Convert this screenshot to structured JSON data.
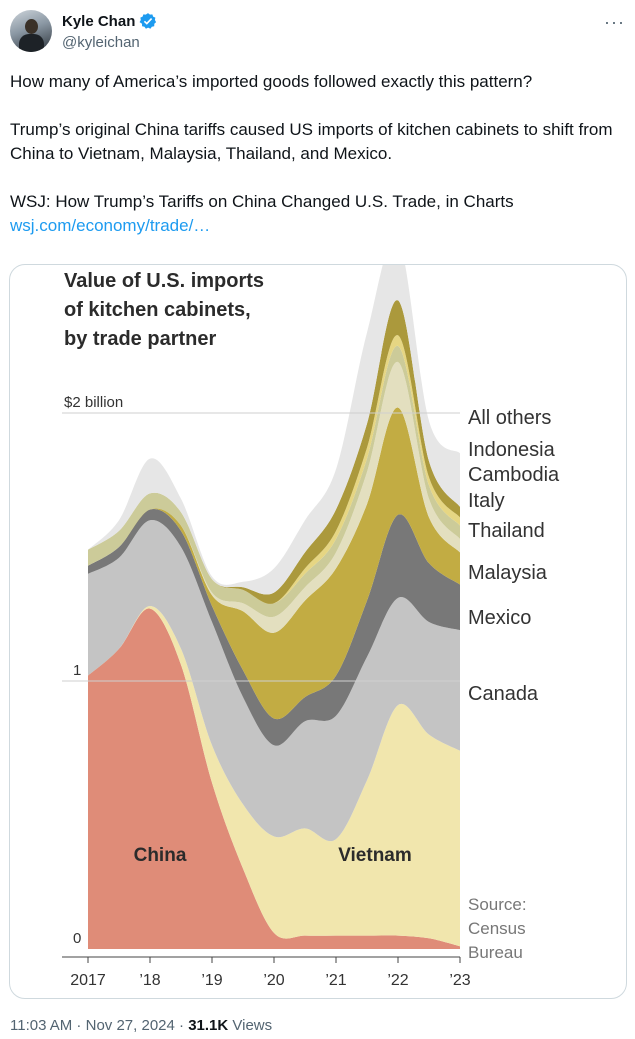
{
  "author": {
    "name": "Kyle Chan",
    "handle": "@kyleichan",
    "verified_icon": "verified-badge-icon",
    "avatar_icon": "avatar-icon"
  },
  "more_icon": "more-icon",
  "tweet": {
    "line1": "How many of America’s imported goods followed exactly this pattern?",
    "line2": "Trump’s original China tariffs caused US imports of kitchen cabinets to shift from China to Vietnam, Malaysia, Thailand, and Mexico.",
    "line3": "WSJ: How Trump’s Tariffs on China Changed U.S. Trade, in Charts",
    "link": "wsj.com/economy/trade/…"
  },
  "meta": {
    "time": "11:03 AM",
    "sep1": " · ",
    "date": "Nov 27, 2024",
    "sep2": " · ",
    "views_count": "31.1K",
    "views_label": " Views"
  },
  "chart_data": {
    "type": "area",
    "title_lines": [
      "Value of U.S. imports",
      "of kitchen cabinets,",
      "by trade partner"
    ],
    "ytick_labels": [
      "$2 billion",
      "1",
      "0"
    ],
    "xtick_labels": [
      "2017",
      "’18",
      "’19",
      "’20",
      "’21",
      "’22",
      "’23"
    ],
    "ylim": [
      0,
      2.6
    ],
    "x": [
      2017.0,
      2017.5,
      2018.0,
      2018.5,
      2019.0,
      2019.5,
      2020.0,
      2020.5,
      2021.0,
      2021.5,
      2022.0,
      2022.5,
      2023.0
    ],
    "stacked": true,
    "series": [
      {
        "name": "China",
        "label": "China",
        "color": "#df8c78",
        "values": [
          1.02,
          1.12,
          1.27,
          1.06,
          0.62,
          0.3,
          0.06,
          0.05,
          0.05,
          0.05,
          0.05,
          0.04,
          0.01
        ]
      },
      {
        "name": "Vietnam",
        "label": "Vietnam",
        "color": "#f1e6ad",
        "values": [
          0.0,
          0.0,
          0.01,
          0.06,
          0.14,
          0.24,
          0.36,
          0.4,
          0.36,
          0.58,
          0.86,
          0.76,
          0.73
        ]
      },
      {
        "name": "Canada",
        "label": "Canada",
        "color": "#c4c4c4",
        "values": [
          0.38,
          0.34,
          0.32,
          0.38,
          0.46,
          0.4,
          0.34,
          0.4,
          0.46,
          0.46,
          0.4,
          0.42,
          0.45
        ]
      },
      {
        "name": "Mexico",
        "label": "Mexico",
        "color": "#787878",
        "values": [
          0.03,
          0.04,
          0.04,
          0.06,
          0.06,
          0.1,
          0.1,
          0.09,
          0.15,
          0.21,
          0.31,
          0.22,
          0.17
        ]
      },
      {
        "name": "Malaysia",
        "label": "Malaysia",
        "color": "#c2ac43",
        "values": [
          0.0,
          0.0,
          0.0,
          0.02,
          0.04,
          0.22,
          0.32,
          0.36,
          0.4,
          0.36,
          0.4,
          0.17,
          0.12
        ]
      },
      {
        "name": "Thailand",
        "label": "Thailand",
        "color": "#e3dfbf",
        "values": [
          0.0,
          0.0,
          0.0,
          0.0,
          0.01,
          0.03,
          0.06,
          0.05,
          0.06,
          0.12,
          0.17,
          0.07,
          0.05
        ]
      },
      {
        "name": "Italy",
        "label": "Italy",
        "color": "#cccb99",
        "values": [
          0.06,
          0.06,
          0.06,
          0.05,
          0.05,
          0.05,
          0.05,
          0.05,
          0.05,
          0.05,
          0.06,
          0.05,
          0.05
        ]
      },
      {
        "name": "Cambodia",
        "label": "Cambodia",
        "color": "#e6d683",
        "values": [
          0.0,
          0.0,
          0.0,
          0.0,
          0.0,
          0.0,
          0.0,
          0.02,
          0.03,
          0.04,
          0.04,
          0.03,
          0.03
        ]
      },
      {
        "name": "Indonesia",
        "label": "Indonesia",
        "color": "#ab993c",
        "values": [
          0.0,
          0.0,
          0.0,
          0.0,
          0.0,
          0.01,
          0.04,
          0.06,
          0.08,
          0.09,
          0.13,
          0.06,
          0.04
        ]
      },
      {
        "name": "All others",
        "label": "All others",
        "color": "#e6e6e6",
        "values": [
          0.0,
          0.04,
          0.13,
          0.05,
          0.01,
          0.02,
          0.09,
          0.12,
          0.15,
          0.34,
          0.23,
          0.15,
          0.2
        ]
      }
    ],
    "source_lines": [
      "Source:",
      "Census",
      "Bureau"
    ],
    "grid": "horizontal reference lines at 1 and 2"
  }
}
